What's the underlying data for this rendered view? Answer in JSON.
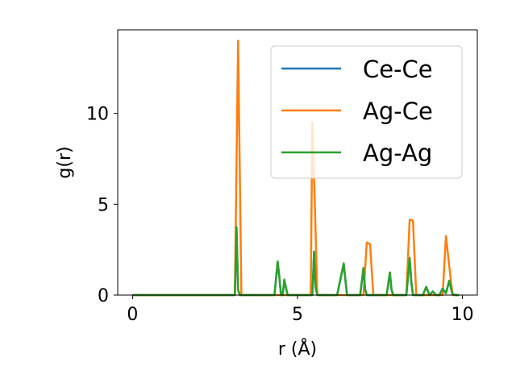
{
  "chart_data": {
    "type": "line",
    "title": "",
    "xlabel": "r (Å)",
    "ylabel": "g(r)",
    "xlim": [
      -0.45,
      10.45
    ],
    "ylim": [
      0,
      14.6
    ],
    "xticks": [
      0,
      5,
      10
    ],
    "yticks": [
      0,
      5,
      10
    ],
    "grid": false,
    "legend": {
      "position": "top-right"
    },
    "series": [
      {
        "name": "Ce-Ce",
        "color": "#1f77b4",
        "x": [
          0,
          3.0,
          3.1,
          3.15,
          3.2,
          3.25,
          3.3,
          3.4,
          4.3,
          4.4,
          4.45,
          4.5,
          4.55,
          4.6,
          4.65,
          4.7,
          4.8,
          5.4,
          5.45,
          5.5,
          5.55,
          5.6,
          5.7,
          6.2,
          6.4,
          6.5,
          6.9,
          7.0,
          7.05,
          7.1,
          7.2,
          7.7,
          7.8,
          7.85,
          7.9,
          8.3,
          8.4,
          8.45,
          8.5,
          8.6,
          8.8,
          8.9,
          9.0,
          9.1,
          9.2,
          9.3,
          9.4,
          9.5,
          9.6,
          9.7,
          9.8,
          9.9
        ],
        "y": [
          0,
          0,
          0,
          3.7,
          0.3,
          0,
          0,
          0,
          0,
          1.8,
          1.0,
          0,
          0,
          0.8,
          0.4,
          0,
          0,
          0,
          0,
          2.3,
          0.4,
          0,
          0,
          0,
          1.7,
          0,
          0,
          1.45,
          0.3,
          0,
          0,
          0,
          1.2,
          0.3,
          0,
          0,
          2.0,
          0.7,
          0,
          0,
          0,
          0.45,
          0,
          0.2,
          0,
          0,
          0.35,
          0.1,
          0.75,
          0.05,
          0,
          0
        ]
      },
      {
        "name": "Ag-Ce",
        "color": "#ff7f0e",
        "x": [
          0,
          3.0,
          3.1,
          3.2,
          3.3,
          3.4,
          5.3,
          5.4,
          5.45,
          5.5,
          5.6,
          5.7,
          6.9,
          7.0,
          7.1,
          7.2,
          7.3,
          8.2,
          8.3,
          8.4,
          8.5,
          8.6,
          9.3,
          9.4,
          9.5,
          9.6,
          9.7,
          9.9
        ],
        "y": [
          0,
          0,
          0,
          14.0,
          0,
          0,
          0,
          0,
          9.5,
          6.5,
          0,
          0,
          0,
          0,
          2.9,
          2.8,
          0,
          0,
          0,
          4.15,
          4.1,
          0,
          0,
          0,
          3.25,
          1.6,
          0,
          0
        ]
      },
      {
        "name": "Ag-Ag",
        "color": "#2ca02c",
        "x": [
          0,
          3.0,
          3.1,
          3.15,
          3.2,
          3.25,
          3.3,
          3.4,
          4.3,
          4.4,
          4.45,
          4.5,
          4.55,
          4.6,
          4.65,
          4.7,
          4.8,
          5.4,
          5.45,
          5.5,
          5.55,
          5.6,
          5.7,
          6.2,
          6.4,
          6.5,
          6.9,
          7.0,
          7.05,
          7.1,
          7.2,
          7.7,
          7.8,
          7.85,
          7.9,
          8.3,
          8.4,
          8.45,
          8.5,
          8.6,
          8.8,
          8.9,
          9.0,
          9.1,
          9.2,
          9.3,
          9.4,
          9.5,
          9.6,
          9.7,
          9.8,
          9.9
        ],
        "y": [
          0,
          0,
          0,
          3.75,
          0.3,
          0,
          0,
          0,
          0,
          1.85,
          1.0,
          0,
          0,
          0.85,
          0.4,
          0,
          0,
          0,
          0,
          2.4,
          0.4,
          0,
          0,
          0,
          1.75,
          0,
          0,
          1.5,
          0.3,
          0,
          0,
          0,
          1.25,
          0.3,
          0,
          0,
          2.05,
          0.7,
          0,
          0,
          0,
          0.45,
          0,
          0.2,
          0,
          0,
          0.35,
          0.1,
          0.8,
          0.05,
          0,
          0
        ]
      }
    ]
  }
}
